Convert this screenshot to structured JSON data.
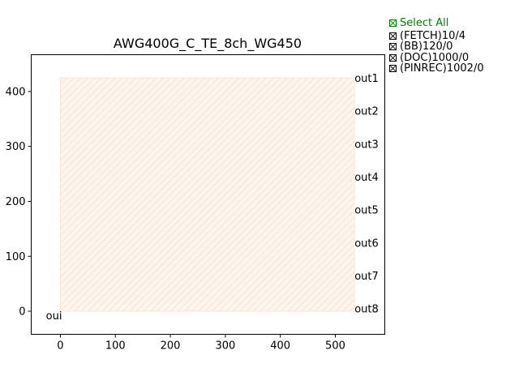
{
  "chart_data": {
    "type": "area",
    "title": "AWG400G_C_TE_8ch_WG450",
    "xlabel": "",
    "ylabel": "",
    "xlim": [
      -53,
      590
    ],
    "ylim": [
      -42,
      467
    ],
    "xticks": [
      0,
      100,
      200,
      300,
      400,
      500
    ],
    "yticks": [
      0,
      100,
      200,
      300,
      400
    ],
    "grid": false,
    "region": {
      "x": [
        0,
        535
      ],
      "y": [
        0,
        425
      ],
      "color": "#fbe6d3",
      "hatch": "diagonal"
    },
    "ports": [
      {
        "name": "oui",
        "x": 0,
        "y": 0,
        "side": "left"
      },
      {
        "name": "out1",
        "x": 535,
        "y": 425,
        "side": "right"
      },
      {
        "name": "out2",
        "x": 535,
        "y": 365,
        "side": "right"
      },
      {
        "name": "out3",
        "x": 535,
        "y": 305,
        "side": "right"
      },
      {
        "name": "out4",
        "x": 535,
        "y": 245,
        "side": "right"
      },
      {
        "name": "out5",
        "x": 535,
        "y": 185,
        "side": "right"
      },
      {
        "name": "out6",
        "x": 535,
        "y": 125,
        "side": "right"
      },
      {
        "name": "out7",
        "x": 535,
        "y": 65,
        "side": "right"
      },
      {
        "name": "out8",
        "x": 535,
        "y": 5,
        "side": "right"
      }
    ]
  },
  "legend": {
    "select_all": "Select All",
    "items": [
      "(FETCH)10/4",
      "(BB)120/0",
      "(DOC)1000/0",
      "(PINREC)1002/0"
    ],
    "select_all_color": "#008000"
  }
}
